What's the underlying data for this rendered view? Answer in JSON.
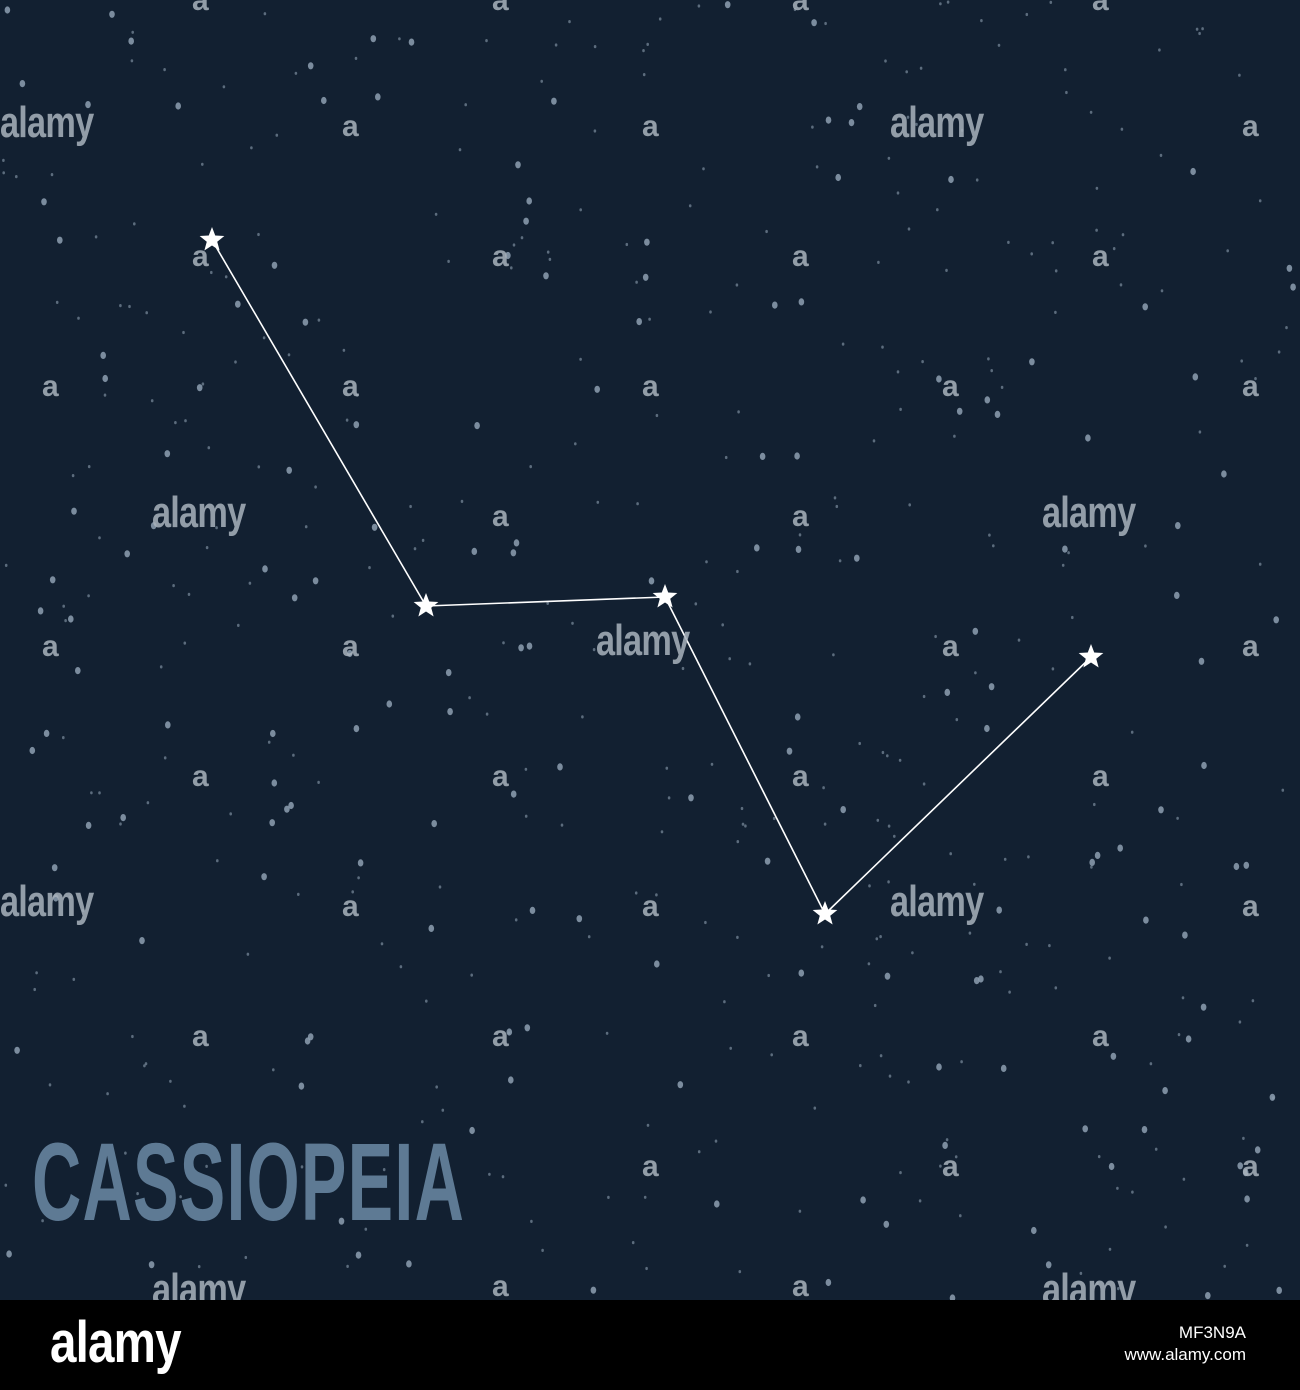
{
  "title": "CASSIOPEIA",
  "watermark_text": "alamy",
  "watermark_mark": "a",
  "footer": {
    "logo": "alamy",
    "image_id": "MF3N9A",
    "site": "www.alamy.com"
  },
  "colors": {
    "background": "#122031",
    "stars": "#8ea0b1",
    "constellation": "#ffffff",
    "title": "#5e7a94",
    "footer": "#000000"
  },
  "constellation": {
    "name": "Cassiopeia",
    "star_count": 5
  }
}
